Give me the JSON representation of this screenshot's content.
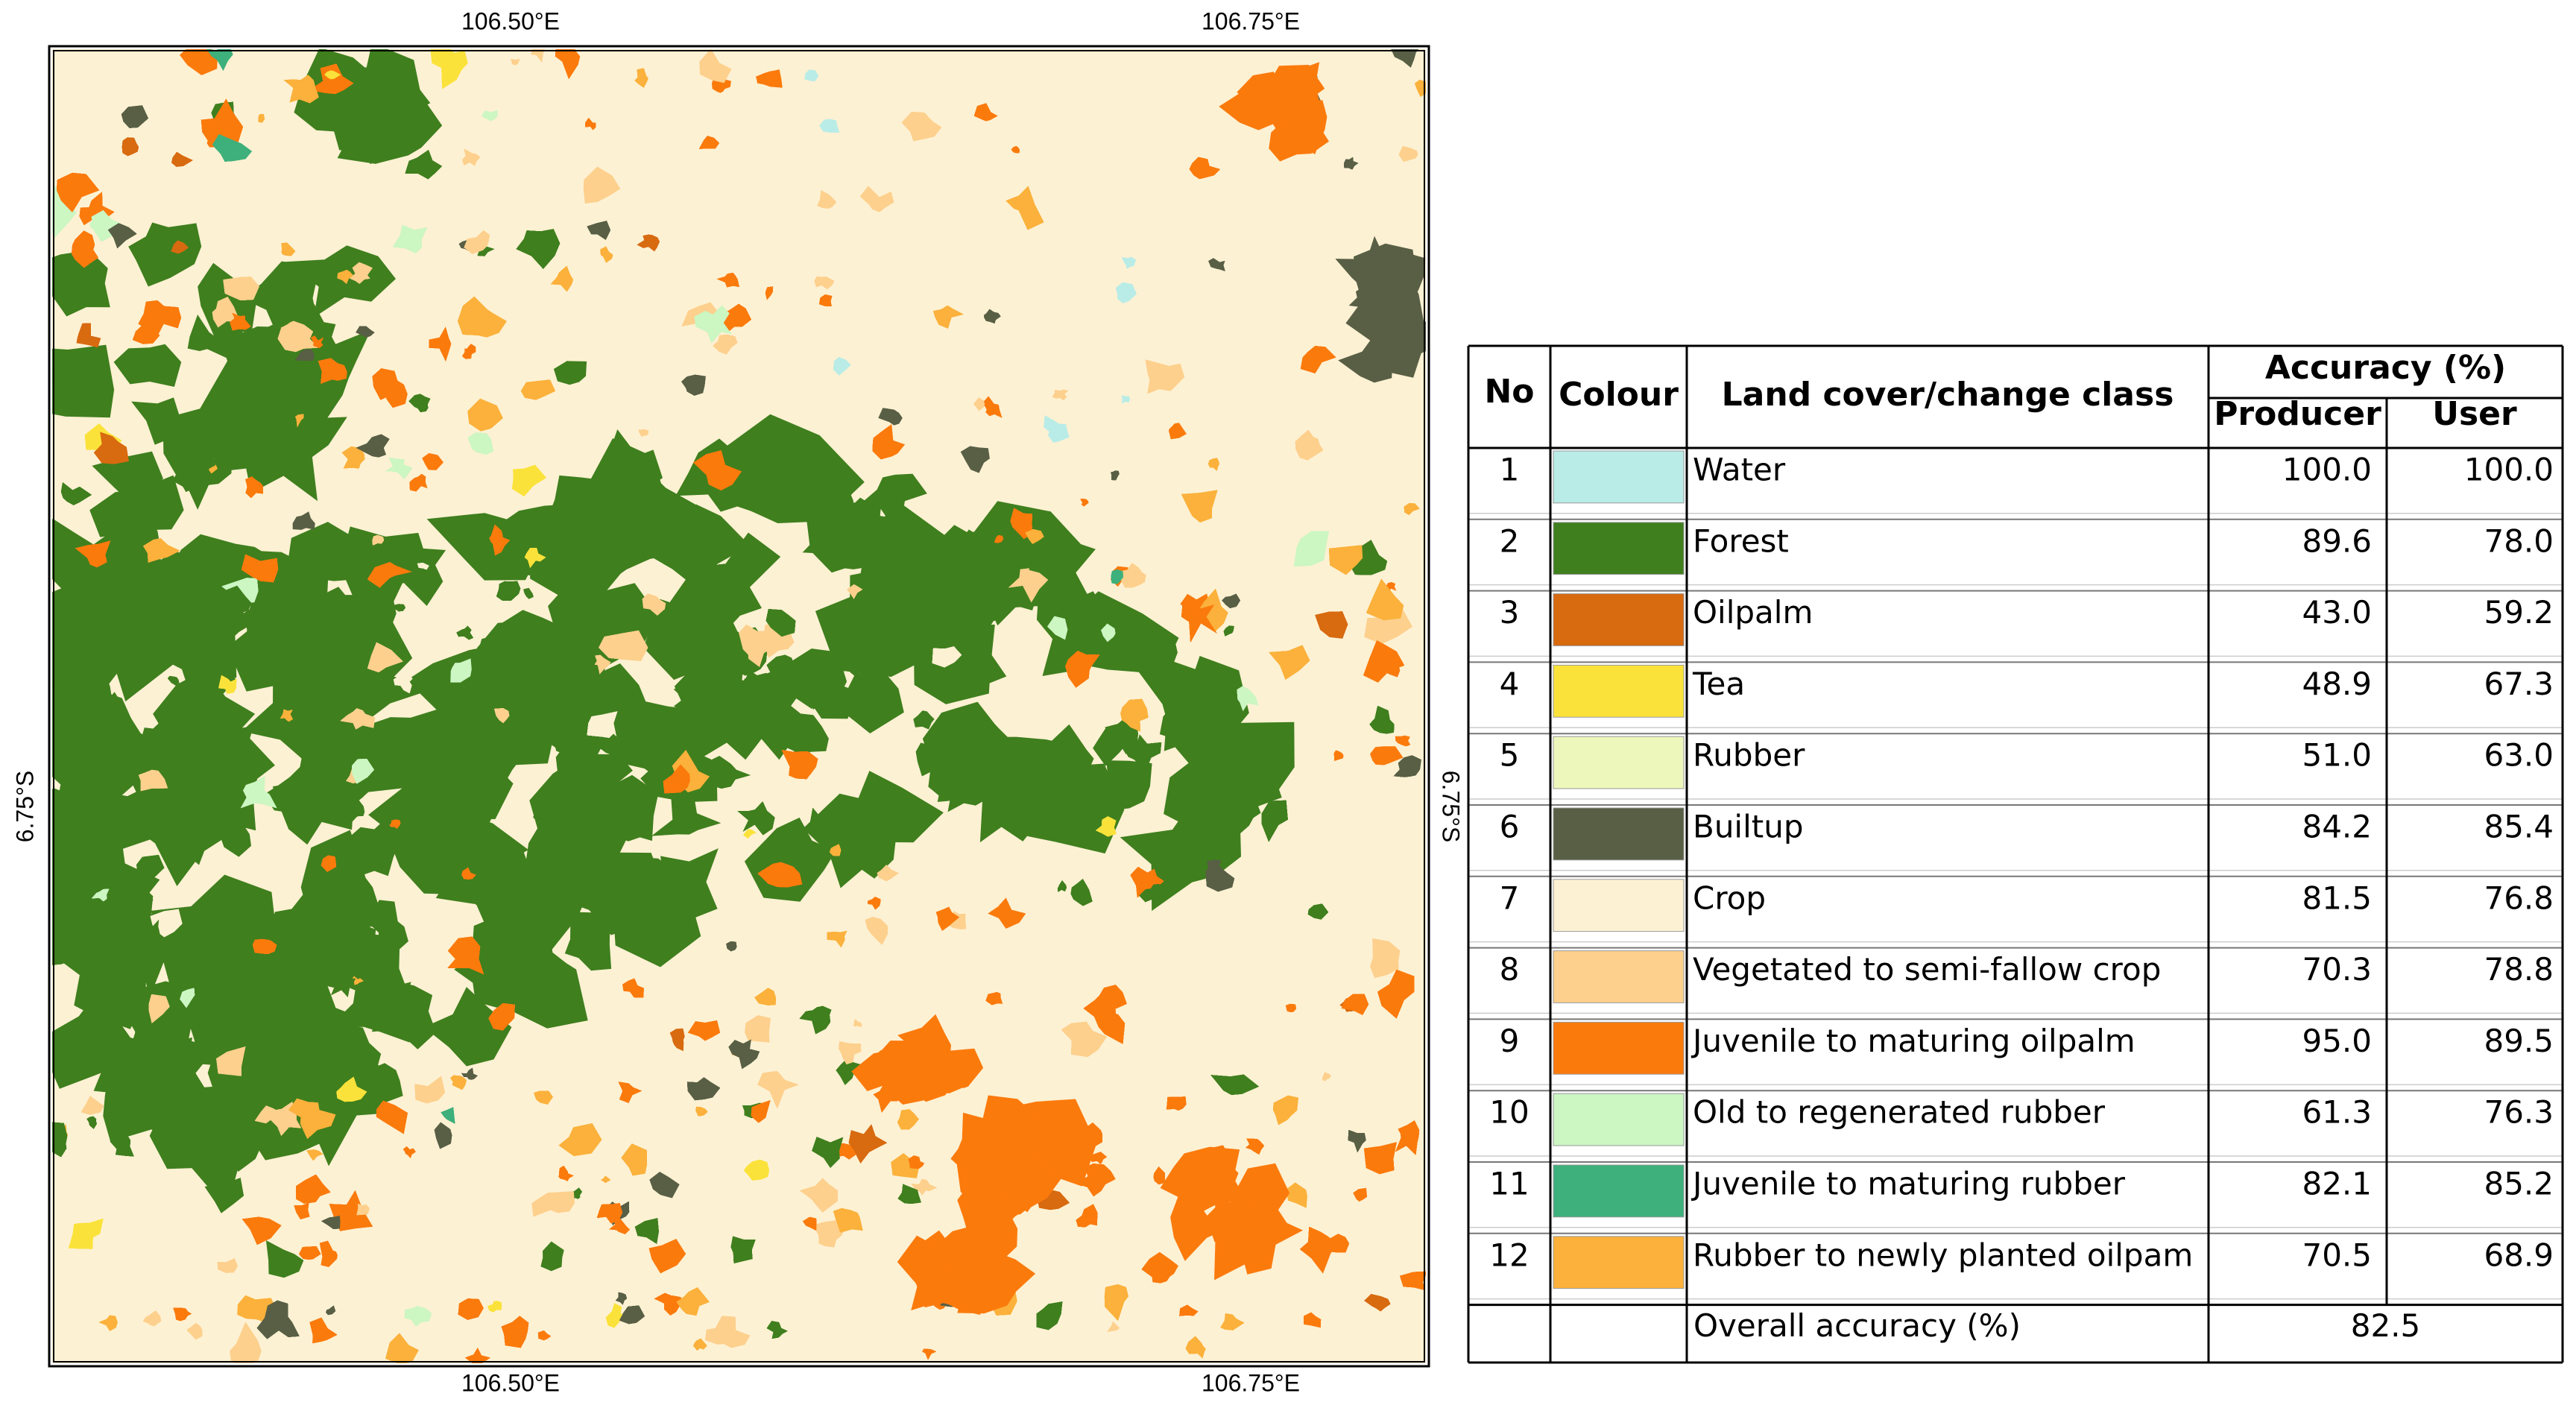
{
  "map": {
    "top_labels": [
      "106.50°E",
      "106.75°E"
    ],
    "bottom_labels": [
      "106.50°E",
      "106.75°E"
    ],
    "left_label": "6.75°S",
    "right_label": "6.75°S"
  },
  "table": {
    "headers": {
      "no": "No",
      "colour": "Colour",
      "class": "Land cover/change class",
      "accuracy": "Accuracy (%)",
      "producer": "Producer",
      "user": "User"
    },
    "rows": [
      {
        "no": 1,
        "color": "#b9ece7",
        "class": "Water",
        "producer": "100.0",
        "user": "100.0"
      },
      {
        "no": 2,
        "color": "#3f7f1e",
        "class": "Forest",
        "producer": "89.6",
        "user": "78.0"
      },
      {
        "no": 3,
        "color": "#d86a10",
        "class": "Oilpalm",
        "producer": "43.0",
        "user": "59.2"
      },
      {
        "no": 4,
        "color": "#fbe23a",
        "class": "Tea",
        "producer": "48.9",
        "user": "67.3"
      },
      {
        "no": 5,
        "color": "#eef7bb",
        "class": "Rubber",
        "producer": "51.0",
        "user": "63.0"
      },
      {
        "no": 6,
        "color": "#585f45",
        "class": "Builtup",
        "producer": "84.2",
        "user": "85.4"
      },
      {
        "no": 7,
        "color": "#fdf1d3",
        "class": "Crop",
        "producer": "81.5",
        "user": "76.8"
      },
      {
        "no": 8,
        "color": "#fdd08d",
        "class": "Vegetated to semi-fallow crop",
        "producer": "70.3",
        "user": "78.8"
      },
      {
        "no": 9,
        "color": "#fb7a0c",
        "class": "Juvenile to maturing oilpalm",
        "producer": "95.0",
        "user": "89.5"
      },
      {
        "no": 10,
        "color": "#ccf6c2",
        "class": "Old to regenerated rubber",
        "producer": "61.3",
        "user": "76.3"
      },
      {
        "no": 11,
        "color": "#3db07b",
        "class": "Juvenile to maturing rubber",
        "producer": "82.1",
        "user": "85.2"
      },
      {
        "no": 12,
        "color": "#fbb13b",
        "class": "Rubber to newly planted oilpam",
        "producer": "70.5",
        "user": "68.9"
      }
    ],
    "overall_label": "Overall accuracy (%)",
    "overall": 82.5
  }
}
